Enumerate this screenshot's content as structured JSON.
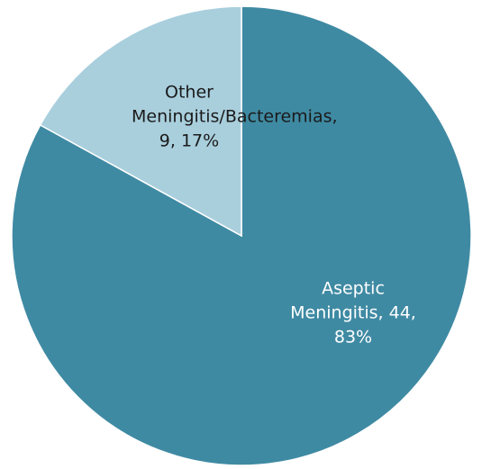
{
  "chart_data": {
    "type": "pie",
    "values": [
      44,
      9
    ],
    "value_labels": [
      "Aseptic Meningitis, 44, 83%",
      "Other Meningitis/Bacteremias, 9, 17%"
    ],
    "colors": [
      "#3f8aa3",
      "#a9cfdd"
    ]
  }
}
